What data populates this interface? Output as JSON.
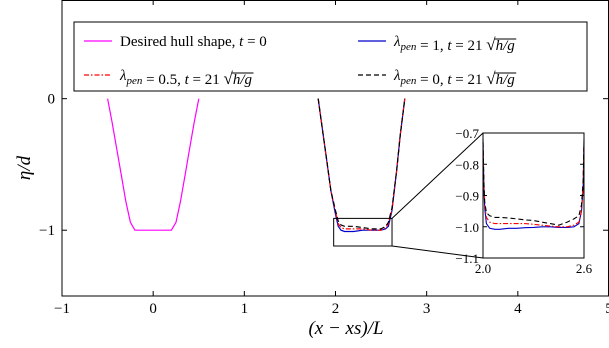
{
  "chart_data": {
    "type": "line",
    "xlabel": "(x − xs)/L",
    "ylabel": "η/d",
    "xlim": [
      -1,
      5
    ],
    "ylim": [
      -1.5,
      0.75
    ],
    "xticks": [
      -1,
      0,
      1,
      2,
      3,
      4,
      5
    ],
    "yticks": [
      0,
      -1
    ],
    "legend_position": "top",
    "series": [
      {
        "name": "Desired hull shape, t = 0",
        "color": "#ff00ff",
        "dash": "solid",
        "x": [
          -0.5,
          -0.45,
          -0.4,
          -0.35,
          -0.3,
          -0.25,
          -0.2,
          0.2,
          0.25,
          0.3,
          0.35,
          0.4,
          0.45,
          0.5
        ],
        "y": [
          0,
          -0.18,
          -0.38,
          -0.58,
          -0.78,
          -0.94,
          -1.0,
          -1.0,
          -0.94,
          -0.78,
          -0.58,
          -0.38,
          -0.18,
          0
        ]
      },
      {
        "name": "λpen = 1, t = 21 √(h/g)",
        "color": "#0000cc",
        "dash": "solid",
        "x": [
          1.81,
          1.85,
          1.9,
          1.95,
          2.0,
          2.03,
          2.06,
          2.1,
          2.15,
          2.2,
          2.3,
          2.4,
          2.5,
          2.55,
          2.58,
          2.62,
          2.67,
          2.71,
          2.76
        ],
        "y": [
          0,
          -0.2,
          -0.45,
          -0.7,
          -0.88,
          -0.97,
          -1.0,
          -1.01,
          -1.01,
          -1.01,
          -1.0,
          -1.0,
          -1.0,
          -0.99,
          -0.97,
          -0.85,
          -0.55,
          -0.28,
          0
        ]
      },
      {
        "name": "λpen = 0.5, t = 21 √(h/g)",
        "color": "#ff0000",
        "dash": "dashdot",
        "x": [
          1.81,
          1.85,
          1.9,
          1.95,
          2.0,
          2.03,
          2.06,
          2.1,
          2.15,
          2.2,
          2.3,
          2.4,
          2.5,
          2.55,
          2.58,
          2.62,
          2.67,
          2.71,
          2.76
        ],
        "y": [
          0,
          -0.2,
          -0.45,
          -0.7,
          -0.86,
          -0.95,
          -0.98,
          -0.99,
          -0.99,
          -0.99,
          -0.99,
          -1.0,
          -1.0,
          -0.98,
          -0.95,
          -0.84,
          -0.55,
          -0.28,
          0
        ]
      },
      {
        "name": "λpen = 0, t = 21 √(h/g)",
        "color": "#000000",
        "dash": "dashed",
        "x": [
          1.81,
          1.85,
          1.9,
          1.95,
          2.0,
          2.03,
          2.06,
          2.1,
          2.15,
          2.2,
          2.3,
          2.4,
          2.5,
          2.55,
          2.58,
          2.62,
          2.67,
          2.71,
          2.76
        ],
        "y": [
          0,
          -0.2,
          -0.45,
          -0.7,
          -0.85,
          -0.93,
          -0.96,
          -0.97,
          -0.97,
          -0.97,
          -0.98,
          -0.99,
          -0.99,
          -0.97,
          -0.94,
          -0.83,
          -0.55,
          -0.28,
          0
        ]
      }
    ],
    "inset": {
      "xlim": [
        2.0,
        2.6
      ],
      "ylim": [
        -1.1,
        -0.7
      ],
      "xticks": [
        2.0,
        2.6
      ],
      "xtick_labels": [
        "2.0",
        "2.6"
      ],
      "yticks": [
        -0.7,
        -0.8,
        -0.9,
        -1.0,
        -1.1
      ],
      "ytick_labels": [
        "−0.7",
        "−0.8",
        "−0.9",
        "−1.0",
        "−1.1"
      ],
      "zoom_box": {
        "x": [
          1.98,
          2.62
        ],
        "y": [
          -1.12,
          -0.91
        ]
      },
      "series": [
        {
          "name": "λpen = 1, t = 21 √(h/g)",
          "x": [
            2.0,
            2.005,
            2.01,
            2.02,
            2.04,
            2.07,
            2.1,
            2.15,
            2.2,
            2.25,
            2.3,
            2.35,
            2.4,
            2.45,
            2.5,
            2.54,
            2.57,
            2.585,
            2.595,
            2.6
          ],
          "y": [
            -0.72,
            -0.86,
            -0.94,
            -0.99,
            -1.005,
            -1.008,
            -1.008,
            -1.005,
            -1.005,
            -1.003,
            -1.002,
            -1.0,
            -1.0,
            -1.002,
            -1.002,
            -1.0,
            -0.99,
            -0.95,
            -0.87,
            -0.72
          ]
        },
        {
          "name": "λpen = 0.5, t = 21 √(h/g)",
          "x": [
            2.0,
            2.005,
            2.01,
            2.02,
            2.04,
            2.07,
            2.1,
            2.15,
            2.2,
            2.25,
            2.3,
            2.35,
            2.4,
            2.45,
            2.5,
            2.54,
            2.57,
            2.585,
            2.595,
            2.6
          ],
          "y": [
            -0.73,
            -0.86,
            -0.93,
            -0.97,
            -0.985,
            -0.99,
            -0.99,
            -0.99,
            -0.99,
            -0.99,
            -0.992,
            -0.995,
            -0.998,
            -1.0,
            -1.0,
            -0.995,
            -0.985,
            -0.95,
            -0.87,
            -0.73
          ]
        },
        {
          "name": "λpen = 0, t = 21 √(h/g)",
          "x": [
            2.0,
            2.005,
            2.01,
            2.02,
            2.04,
            2.07,
            2.1,
            2.15,
            2.2,
            2.25,
            2.3,
            2.35,
            2.4,
            2.45,
            2.5,
            2.54,
            2.57,
            2.585,
            2.595,
            2.6
          ],
          "y": [
            -0.73,
            -0.85,
            -0.92,
            -0.955,
            -0.965,
            -0.97,
            -0.97,
            -0.972,
            -0.975,
            -0.978,
            -0.98,
            -0.985,
            -0.99,
            -0.995,
            -0.985,
            -0.975,
            -0.965,
            -0.93,
            -0.85,
            -0.73
          ]
        }
      ]
    }
  }
}
